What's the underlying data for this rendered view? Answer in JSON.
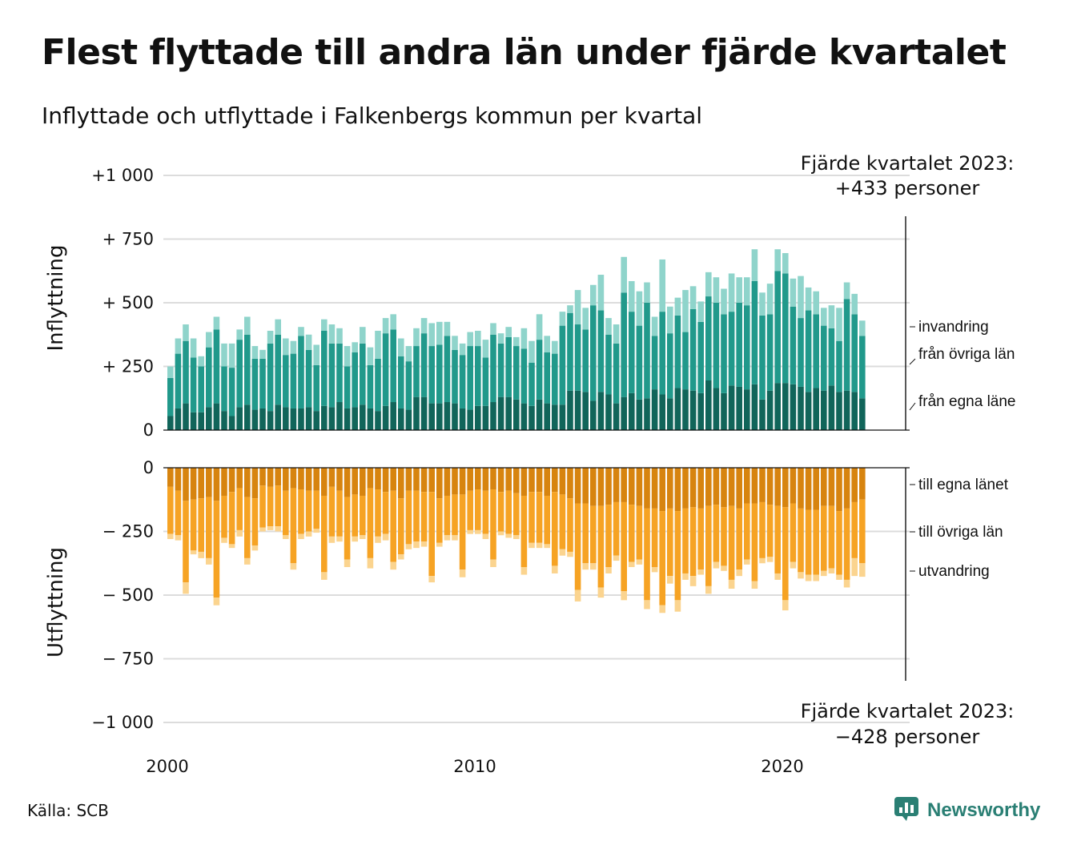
{
  "title": "Flest flyttade till andra län under fjärde kvartalet",
  "subtitle": "Inflyttade och utflyttade i Falkenbergs kommun per kvartal",
  "source": "Källa: SCB",
  "brand": {
    "name": "Newsworthy",
    "icon": "chart-bubble-icon"
  },
  "colors": {
    "in_egna": "#11655a",
    "in_ovriga": "#21998b",
    "in_invandring": "#8fd4cb",
    "ut_egna": "#d7840f",
    "ut_ovriga": "#f6a324",
    "ut_utvandring": "#fbd48f",
    "brand": "#2a7f74"
  },
  "chart_data": {
    "type": "bar",
    "stacked": true,
    "x_start": "2000 Q1",
    "x_tick_labels": [
      "2000",
      "2010",
      "2020"
    ],
    "annotation_top": [
      "Fjärde kvartalet 2023:",
      "+433 personer"
    ],
    "annotation_bottom": [
      "Fjärde kvartalet 2023:",
      "−428 personer"
    ],
    "panels": [
      {
        "axis_title": "Inflyttning",
        "ylim": [
          0,
          1000
        ],
        "y_ticks": [
          {
            "v": 0,
            "label": "0"
          },
          {
            "v": 250,
            "label": "+  250"
          },
          {
            "v": 500,
            "label": "+  500"
          },
          {
            "v": 750,
            "label": "+  750"
          },
          {
            "v": 1000,
            "label": "+1 000"
          }
        ],
        "series": [
          {
            "name": "från egna läne",
            "color_key": "in_egna",
            "values": [
              55,
              85,
              105,
              70,
              70,
              90,
              105,
              75,
              55,
              90,
              100,
              80,
              85,
              75,
              100,
              90,
              85,
              85,
              90,
              75,
              95,
              90,
              110,
              85,
              90,
              100,
              85,
              75,
              95,
              110,
              85,
              80,
              130,
              130,
              105,
              105,
              110,
              105,
              85,
              80,
              95,
              95,
              110,
              130,
              130,
              120,
              105,
              95,
              120,
              105,
              100,
              100,
              155,
              155,
              150,
              115,
              150,
              140,
              105,
              130,
              145,
              120,
              125,
              160,
              140,
              125,
              165,
              160,
              155,
              145,
              195,
              165,
              145,
              175,
              170,
              160,
              180,
              120,
              155,
              185,
              185,
              180,
              170,
              150,
              165,
              155,
              175,
              150,
              155,
              150,
              125
            ]
          },
          {
            "name": "från övriga län",
            "color_key": "in_ovriga",
            "values": [
              150,
              215,
              245,
              215,
              180,
              235,
              290,
              175,
              190,
              265,
              275,
              200,
              195,
              265,
              275,
              205,
              215,
              285,
              225,
              180,
              295,
              250,
              230,
              165,
              215,
              240,
              170,
              205,
              285,
              285,
              205,
              190,
              200,
              250,
              225,
              230,
              260,
              210,
              210,
              250,
              235,
              190,
              265,
              210,
              235,
              210,
              215,
              170,
              235,
              200,
              200,
              310,
              305,
              260,
              245,
              375,
              320,
              235,
              235,
              410,
              320,
              290,
              375,
              210,
              325,
              255,
              285,
              225,
              320,
              280,
              330,
              335,
              310,
              290,
              330,
              330,
              405,
              330,
              300,
              440,
              430,
              305,
              270,
              320,
              290,
              255,
              225,
              200,
              360,
              305,
              245
            ]
          },
          {
            "name": "invandring",
            "color_key": "in_invandring",
            "values": [
              45,
              60,
              65,
              75,
              40,
              60,
              50,
              90,
              95,
              40,
              70,
              50,
              35,
              50,
              60,
              65,
              50,
              35,
              60,
              80,
              45,
              75,
              60,
              80,
              40,
              65,
              70,
              110,
              60,
              60,
              70,
              60,
              70,
              60,
              90,
              90,
              55,
              55,
              45,
              55,
              60,
              70,
              45,
              40,
              40,
              35,
              80,
              85,
              100,
              65,
              50,
              55,
              30,
              135,
              85,
              80,
              140,
              65,
              75,
              140,
              120,
              135,
              80,
              75,
              205,
              105,
              70,
              165,
              90,
              80,
              95,
              100,
              100,
              150,
              100,
              110,
              125,
              90,
              120,
              85,
              80,
              110,
              165,
              90,
              90,
              70,
              90,
              130,
              65,
              80,
              60
            ]
          }
        ]
      },
      {
        "axis_title": "Utflyttning",
        "ylim": [
          -1000,
          0
        ],
        "y_ticks": [
          {
            "v": 0,
            "label": "0"
          },
          {
            "v": -250,
            "label": "−  250"
          },
          {
            "v": -500,
            "label": "−  500"
          },
          {
            "v": -750,
            "label": "−  750"
          },
          {
            "v": -1000,
            "label": "−1 000"
          }
        ],
        "series": [
          {
            "name": "till egna länet",
            "color_key": "ut_egna",
            "values": [
              -75,
              -90,
              -130,
              -125,
              -120,
              -115,
              -130,
              -110,
              -95,
              -80,
              -115,
              -120,
              -70,
              -75,
              -70,
              -90,
              -80,
              -85,
              -90,
              -90,
              -110,
              -75,
              -90,
              -115,
              -105,
              -110,
              -80,
              -85,
              -95,
              -90,
              -120,
              -90,
              -90,
              -95,
              -95,
              -120,
              -110,
              -105,
              -105,
              -90,
              -85,
              -90,
              -85,
              -95,
              -90,
              -100,
              -110,
              -95,
              -95,
              -110,
              -95,
              -105,
              -120,
              -140,
              -140,
              -150,
              -150,
              -145,
              -135,
              -135,
              -145,
              -150,
              -160,
              -160,
              -170,
              -160,
              -170,
              -160,
              -155,
              -160,
              -150,
              -145,
              -155,
              -150,
              -160,
              -140,
              -140,
              -135,
              -145,
              -150,
              -155,
              -140,
              -160,
              -165,
              -165,
              -150,
              -150,
              -170,
              -160,
              -135,
              -125
            ]
          },
          {
            "name": "till övriga län",
            "color_key": "ut_ovriga",
            "values": [
              -185,
              -175,
              -320,
              -200,
              -210,
              -240,
              -380,
              -165,
              -205,
              -165,
              -240,
              -185,
              -165,
              -155,
              -160,
              -175,
              -295,
              -175,
              -160,
              -150,
              -300,
              -195,
              -180,
              -245,
              -165,
              -155,
              -275,
              -185,
              -165,
              -280,
              -220,
              -210,
              -200,
              -195,
              -330,
              -175,
              -155,
              -160,
              -295,
              -155,
              -160,
              -170,
              -275,
              -155,
              -170,
              -165,
              -280,
              -200,
              -200,
              -190,
              -290,
              -215,
              -210,
              -340,
              -235,
              -225,
              -320,
              -245,
              -210,
              -350,
              -225,
              -210,
              -360,
              -230,
              -370,
              -265,
              -350,
              -255,
              -270,
              -240,
              -315,
              -225,
              -230,
              -290,
              -240,
              -220,
              -305,
              -220,
              -205,
              -265,
              -365,
              -230,
              -250,
              -255,
              -255,
              -255,
              -245,
              -250,
              -280,
              -220,
              -250
            ]
          },
          {
            "name": "utvandring",
            "color_key": "ut_utvandring",
            "values": [
              -20,
              -20,
              -45,
              -15,
              -25,
              -25,
              -30,
              -20,
              -15,
              -25,
              -25,
              -20,
              -15,
              -15,
              -20,
              -15,
              -25,
              -20,
              -20,
              -15,
              -30,
              -25,
              -20,
              -30,
              -20,
              -15,
              -40,
              -25,
              -25,
              -30,
              -20,
              -20,
              -25,
              -20,
              -25,
              -15,
              -20,
              -20,
              -30,
              -15,
              -15,
              -20,
              -30,
              -15,
              -15,
              -15,
              -30,
              -20,
              -20,
              -15,
              -30,
              -25,
              -20,
              -45,
              -25,
              -25,
              -40,
              -25,
              -20,
              -35,
              -20,
              -20,
              -35,
              -20,
              -30,
              -30,
              -45,
              -25,
              -40,
              -20,
              -30,
              -25,
              -20,
              -35,
              -25,
              -20,
              -30,
              -20,
              -20,
              -25,
              -40,
              -25,
              -25,
              -25,
              -25,
              -20,
              -20,
              -20,
              -30,
              -70,
              -53
            ]
          }
        ]
      }
    ]
  }
}
